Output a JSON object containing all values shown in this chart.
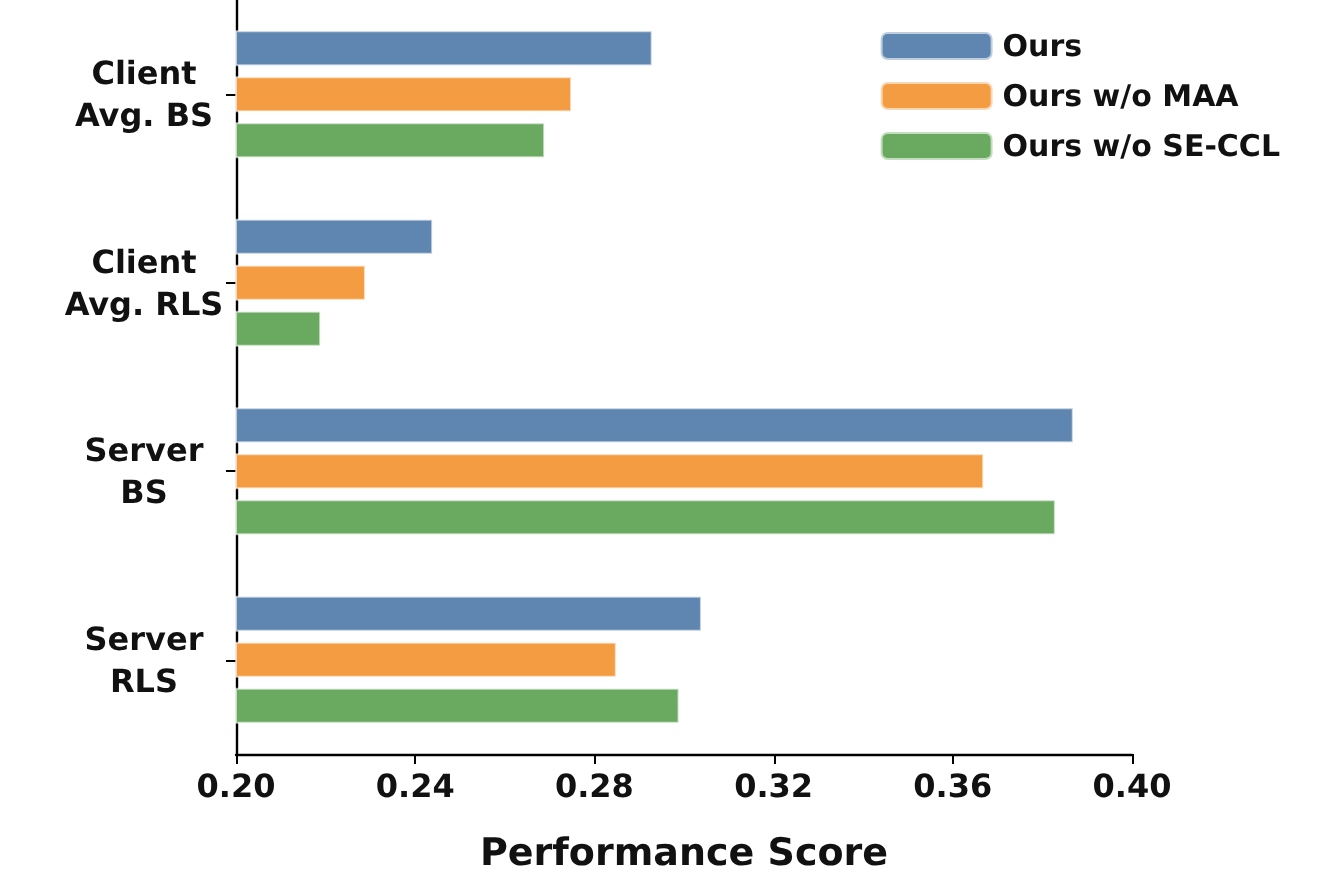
{
  "chart_data": {
    "type": "bar",
    "orientation": "horizontal",
    "xlabel": "Performance Score",
    "categories": [
      "Client\nAvg. BS",
      "Client\nAvg. RLS",
      "Server\nBS",
      "Server\nRLS"
    ],
    "series": [
      {
        "name": "Ours",
        "color": "#5f86b0",
        "values": [
          0.293,
          0.244,
          0.387,
          0.304
        ]
      },
      {
        "name": "Ours w/o MAA",
        "color": "#f49c42",
        "values": [
          0.275,
          0.229,
          0.367,
          0.285
        ]
      },
      {
        "name": "Ours w/o SE-CCL",
        "color": "#6aaa60",
        "values": [
          0.269,
          0.219,
          0.383,
          0.299
        ]
      }
    ],
    "xlim": [
      0.2,
      0.4
    ],
    "xticks": [
      {
        "value": 0.2,
        "label": "0.20"
      },
      0.24,
      0.28,
      0.32,
      0.36,
      {
        "value": 0.4,
        "label": "0.40"
      }
    ],
    "grid": false,
    "legend": "top right"
  }
}
